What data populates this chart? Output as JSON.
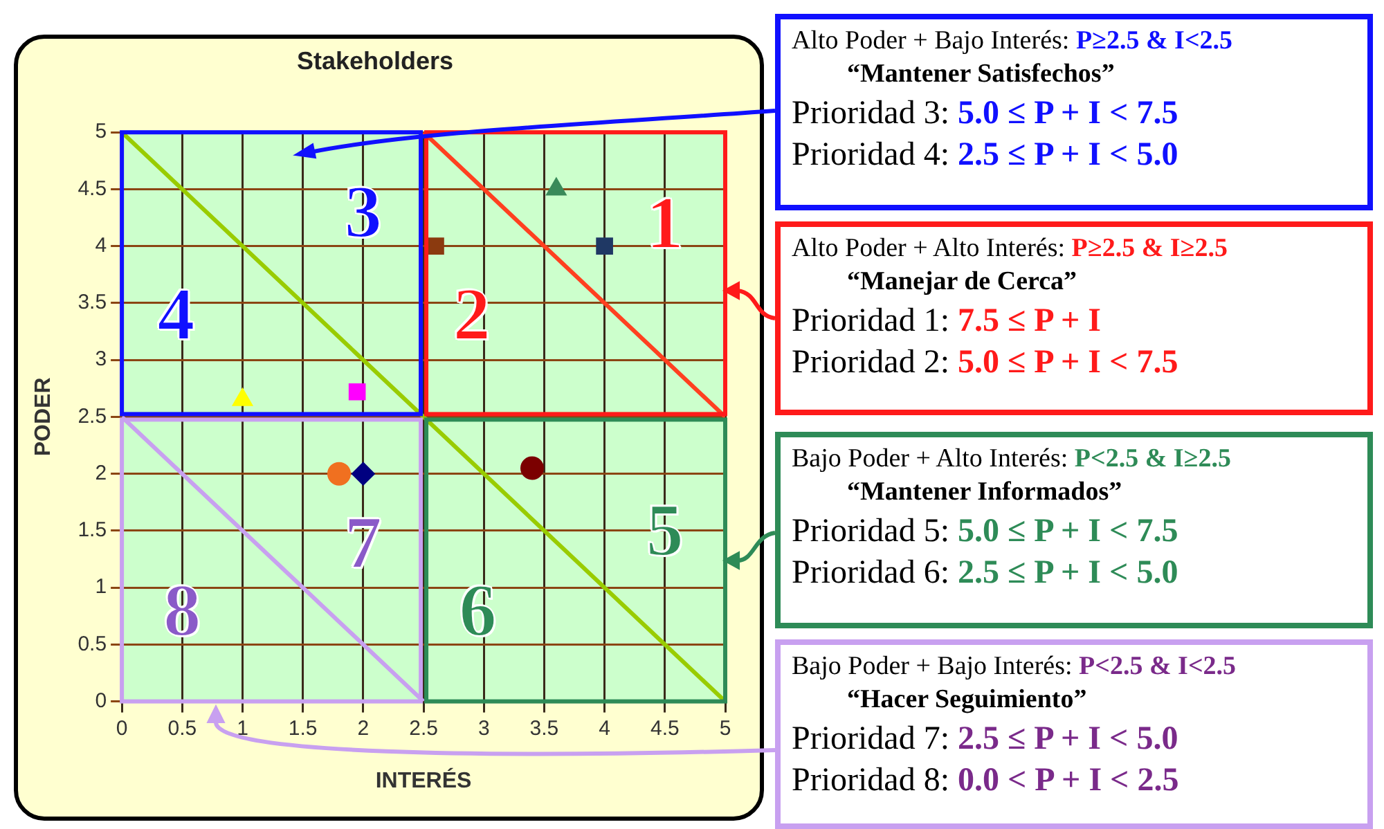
{
  "chart_data": {
    "type": "scatter",
    "title": "Stakeholders",
    "xlabel": "INTERÉS",
    "ylabel": "PODER",
    "xlim": [
      0,
      5
    ],
    "ylim": [
      0,
      5
    ],
    "xticks": [
      0,
      0.5,
      1,
      1.5,
      2,
      2.5,
      3,
      3.5,
      4,
      4.5,
      5
    ],
    "yticks": [
      0,
      0.5,
      1,
      1.5,
      2,
      2.5,
      3,
      3.5,
      4,
      4.5,
      5
    ],
    "grid": true,
    "legend": false,
    "series": [
      {
        "type": "line",
        "color": "#99cc00",
        "x": [
          0,
          5
        ],
        "values": [
          5,
          0
        ]
      },
      {
        "type": "line",
        "color": "#ff4020",
        "x": [
          2.5,
          5
        ],
        "values": [
          5,
          2.5
        ]
      },
      {
        "type": "line",
        "color": "#c8a0f0",
        "x": [
          0,
          2.5
        ],
        "values": [
          2.5,
          0
        ]
      },
      {
        "marker": "square",
        "color": "#8b3a0f",
        "x": [
          2.6
        ],
        "values": [
          4.0
        ]
      },
      {
        "marker": "triangle",
        "color": "#3a8a5a",
        "x": [
          3.6
        ],
        "values": [
          4.5
        ]
      },
      {
        "marker": "square",
        "color": "#1f3864",
        "x": [
          4.0
        ],
        "values": [
          4.0
        ]
      },
      {
        "marker": "triangle",
        "color": "#ffff00",
        "x": [
          1.0
        ],
        "values": [
          2.65
        ]
      },
      {
        "marker": "square",
        "color": "#ff00ff",
        "x": [
          1.95
        ],
        "values": [
          2.72
        ]
      },
      {
        "marker": "circle",
        "color": "#f07020",
        "x": [
          1.8
        ],
        "values": [
          2.0
        ]
      },
      {
        "marker": "diamond",
        "color": "#000080",
        "x": [
          2.0
        ],
        "values": [
          2.0
        ]
      },
      {
        "marker": "circle",
        "color": "#7b0000",
        "x": [
          3.4
        ],
        "values": [
          2.05
        ]
      }
    ],
    "annotations": [
      "1",
      "2",
      "3",
      "4",
      "5",
      "6",
      "7",
      "8",
      "Alto Poder + Bajo Interés: P≥2.5 & I<2.5",
      "“Mantener Satisfechos”",
      "Prioridad 3: 5.0 ≤ P + I < 7.5",
      "Prioridad 4: 2.5 ≤ P + I < 5.0",
      "Alto Poder + Alto Interés: P≥2.5 & I≥2.5",
      "“Manejar de Cerca”",
      "Prioridad 1: 7.5 ≤ P + I",
      "Prioridad 2: 5.0 ≤ P + I < 7.5",
      "Bajo Poder + Alto Interés: P<2.5 & I≥2.5",
      "“Mantener Informados”",
      "Prioridad 5: 5.0 ≤ P + I < 7.5",
      "Prioridad 6: 2.5 ≤ P + I < 5.0",
      "Bajo Poder + Bajo Interés: P<2.5 & I<2.5",
      "“Hacer Seguimiento”",
      "Prioridad 7: 2.5 ≤ P + I < 5.0",
      "Prioridad 8: 0.0 < P + I < 2.5"
    ]
  }
}
